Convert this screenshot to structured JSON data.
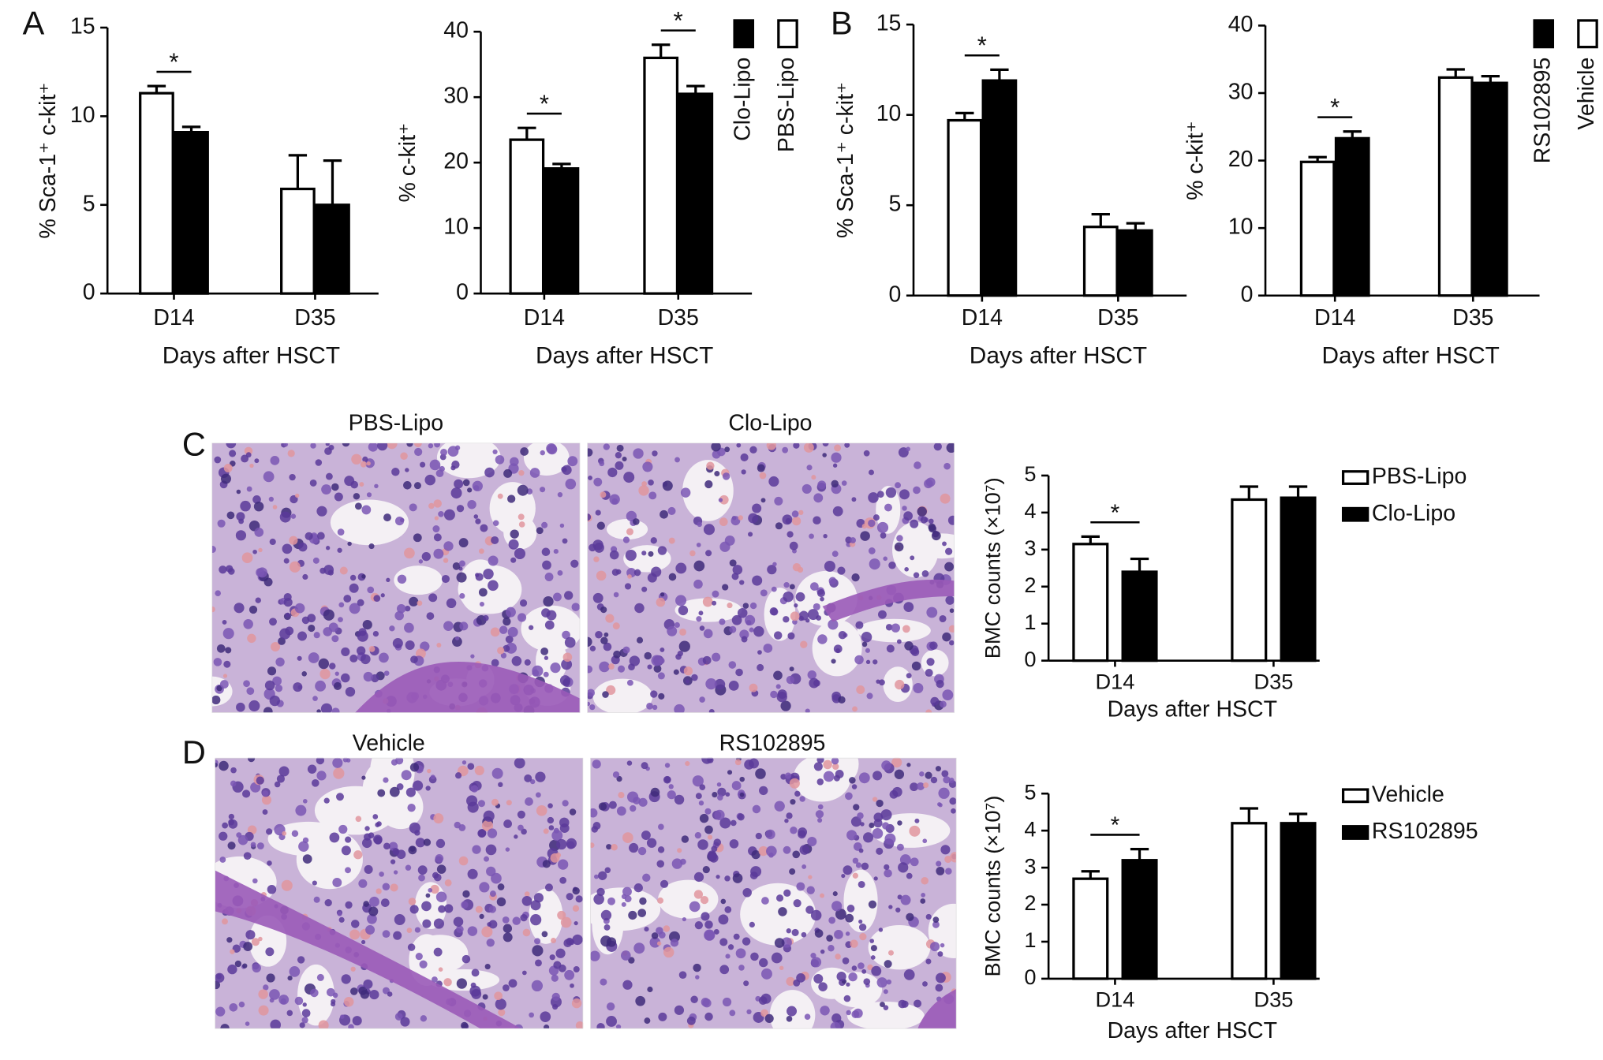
{
  "panel_labels": [
    "A",
    "B",
    "C",
    "D"
  ],
  "images": [
    {
      "title": "PBS-Lipo"
    },
    {
      "title": "Clo-Lipo"
    },
    {
      "title": "Vehicle"
    },
    {
      "title": "RS102895"
    }
  ],
  "chart_data": [
    {
      "type": "bar",
      "y_label": "% Sca-1⁺ c-kit⁺",
      "x_label": "Days after HSCT",
      "categories": [
        "D14",
        "D35"
      ],
      "series": [
        {
          "name": "PBS-Lipo",
          "color": "#ffffff",
          "values": [
            11.3,
            5.9
          ],
          "errors": [
            0.4,
            1.9
          ]
        },
        {
          "name": "Clo-Lipo",
          "color": "#000000",
          "values": [
            9.1,
            5.0
          ],
          "errors": [
            0.3,
            2.5
          ]
        }
      ],
      "ylim": [
        0,
        15
      ],
      "yticks": [
        0,
        5,
        10,
        15
      ],
      "annotations": [
        {
          "text": "*",
          "category": 0
        }
      ]
    },
    {
      "type": "bar",
      "y_label": "% c-kit⁺",
      "x_label": "Days after HSCT",
      "categories": [
        "D14",
        "D35"
      ],
      "series": [
        {
          "name": "PBS-Lipo",
          "color": "#ffffff",
          "values": [
            23.5,
            36.0
          ],
          "errors": [
            1.8,
            2.0
          ]
        },
        {
          "name": "Clo-Lipo",
          "color": "#000000",
          "values": [
            19.1,
            30.5
          ],
          "errors": [
            0.7,
            1.2
          ]
        }
      ],
      "ylim": [
        0,
        40
      ],
      "yticks": [
        0,
        10,
        20,
        30,
        40
      ],
      "legend": "right",
      "annotations": [
        {
          "text": "*",
          "category": 0
        },
        {
          "text": "*",
          "category": 1
        }
      ]
    },
    {
      "type": "bar",
      "y_label": "% Sca-1⁺ c-kit⁺",
      "x_label": "Days after HSCT",
      "categories": [
        "D14",
        "D35"
      ],
      "series": [
        {
          "name": "Vehicle",
          "color": "#ffffff",
          "values": [
            9.7,
            3.8
          ],
          "errors": [
            0.4,
            0.7
          ]
        },
        {
          "name": "RS102895",
          "color": "#000000",
          "values": [
            11.9,
            3.6
          ],
          "errors": [
            0.6,
            0.4
          ]
        }
      ],
      "ylim": [
        0,
        15
      ],
      "yticks": [
        0,
        5,
        10,
        15
      ],
      "annotations": [
        {
          "text": "*",
          "category": 0
        }
      ]
    },
    {
      "type": "bar",
      "y_label": "% c-kit⁺",
      "x_label": "Days after HSCT",
      "categories": [
        "D14",
        "D35"
      ],
      "series": [
        {
          "name": "Vehicle",
          "color": "#ffffff",
          "values": [
            19.8,
            32.3
          ],
          "errors": [
            0.7,
            1.2
          ]
        },
        {
          "name": "RS102895",
          "color": "#000000",
          "values": [
            23.3,
            31.5
          ],
          "errors": [
            1.0,
            1.0
          ]
        }
      ],
      "ylim": [
        0,
        40
      ],
      "yticks": [
        0,
        10,
        20,
        30,
        40
      ],
      "legend": "right",
      "annotations": [
        {
          "text": "*",
          "category": 0
        }
      ]
    },
    {
      "type": "bar",
      "y_label": "BMC counts (×10⁷)",
      "x_label": "Days after HSCT",
      "categories": [
        "D14",
        "D35"
      ],
      "series": [
        {
          "name": "PBS-Lipo",
          "color": "#ffffff",
          "values": [
            3.15,
            4.35
          ],
          "errors": [
            0.2,
            0.35
          ]
        },
        {
          "name": "Clo-Lipo",
          "color": "#000000",
          "values": [
            2.4,
            4.4
          ],
          "errors": [
            0.35,
            0.3
          ]
        }
      ],
      "ylim": [
        0,
        5
      ],
      "yticks": [
        0,
        1,
        2,
        3,
        4,
        5
      ],
      "legend": "right",
      "annotations": [
        {
          "text": "*",
          "category": 0
        }
      ]
    },
    {
      "type": "bar",
      "y_label": "BMC counts (×10⁷)",
      "x_label": "Days after HSCT",
      "categories": [
        "D14",
        "D35"
      ],
      "series": [
        {
          "name": "Vehicle",
          "color": "#ffffff",
          "values": [
            2.7,
            4.2
          ],
          "errors": [
            0.2,
            0.4
          ]
        },
        {
          "name": "RS102895",
          "color": "#000000",
          "values": [
            3.2,
            4.2
          ],
          "errors": [
            0.3,
            0.25
          ]
        }
      ],
      "ylim": [
        0,
        5
      ],
      "yticks": [
        0,
        1,
        2,
        3,
        4,
        5
      ],
      "legend": "right",
      "annotations": [
        {
          "text": "*",
          "category": 0
        }
      ]
    }
  ]
}
